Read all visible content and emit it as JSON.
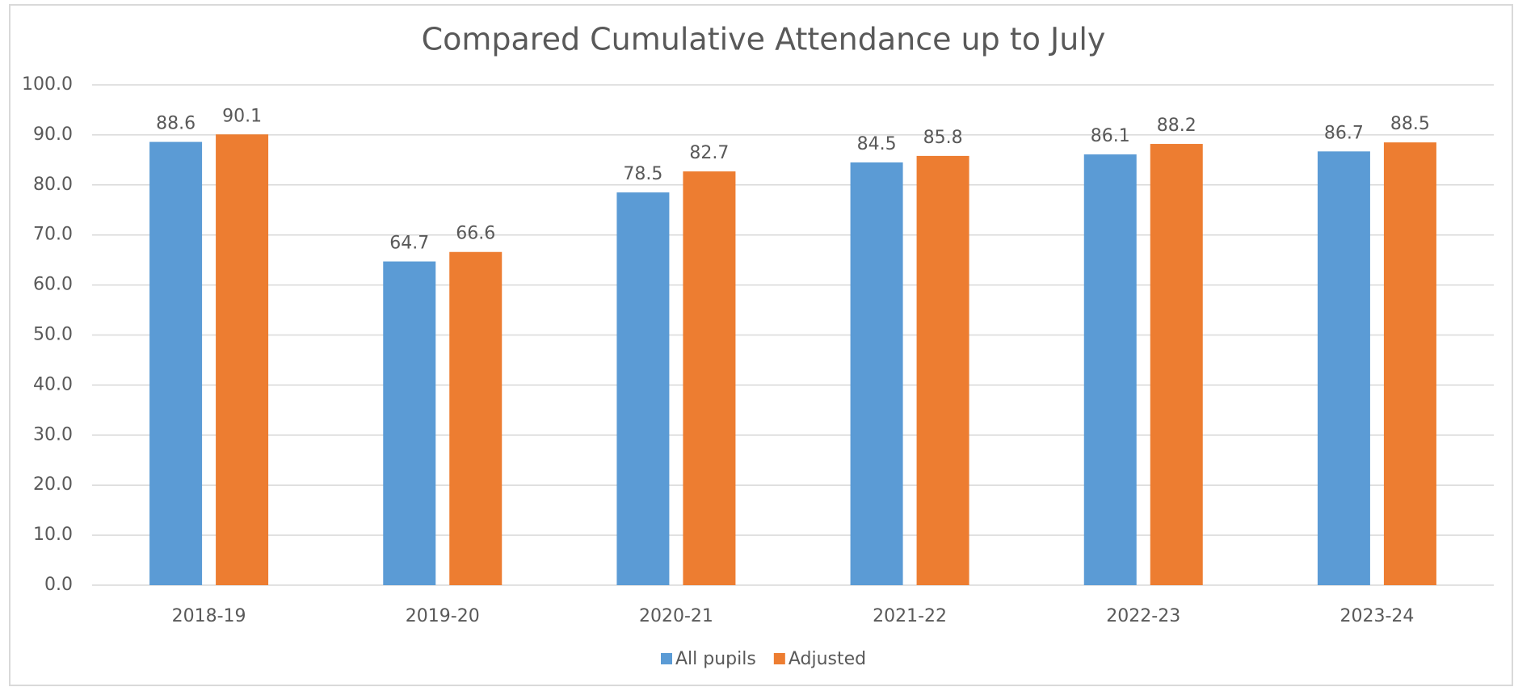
{
  "chart_data": {
    "type": "bar",
    "title": "Compared Cumulative Attendance up to July",
    "categories": [
      "2018-19",
      "2019-20",
      "2020-21",
      "2021-22",
      "2022-23",
      "2023-24"
    ],
    "series": [
      {
        "name": "All pupils",
        "color": "#5b9bd5",
        "values": [
          88.6,
          64.7,
          78.5,
          84.5,
          86.1,
          86.7
        ]
      },
      {
        "name": "Adjusted",
        "color": "#ed7d31",
        "values": [
          90.1,
          66.6,
          82.7,
          85.8,
          88.2,
          88.5
        ]
      }
    ],
    "ylim": [
      0,
      100
    ],
    "yticks": [
      {
        "value": 0,
        "label": "0.0"
      },
      {
        "value": 10,
        "label": "10.0"
      },
      {
        "value": 20,
        "label": "20.0"
      },
      {
        "value": 30,
        "label": "30.0"
      },
      {
        "value": 40,
        "label": "40.0"
      },
      {
        "value": 50,
        "label": "50.0"
      },
      {
        "value": 60,
        "label": "60.0"
      },
      {
        "value": 70,
        "label": "70.0"
      },
      {
        "value": 80,
        "label": "80.0"
      },
      {
        "value": 90,
        "label": "90.0"
      },
      {
        "value": 100,
        "label": "100.0"
      }
    ],
    "grid": true,
    "legend": "bottom"
  }
}
